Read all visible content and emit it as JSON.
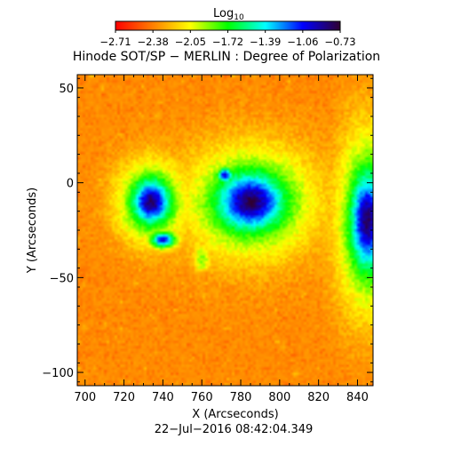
{
  "colorbar": {
    "label_main": "Log",
    "label_sub": "10",
    "ticks": [
      "−2.71",
      "−2.38",
      "−2.05",
      "−1.72",
      "−1.39",
      "−1.06",
      "−0.73"
    ],
    "range": [
      -2.71,
      -0.73
    ]
  },
  "chart_data": {
    "type": "heatmap",
    "title": "Hinode SOT/SP − MERLIN : Degree of Polarization",
    "xlabel": "X (Arcseconds)",
    "ylabel": "Y (Arcseconds)",
    "xlim": [
      696,
      848
    ],
    "ylim": [
      -107,
      57
    ],
    "xticks": [
      700,
      720,
      740,
      760,
      780,
      800,
      820,
      840
    ],
    "yticks": [
      -100,
      -50,
      0,
      50
    ],
    "value_unit": "log10 degree of polarization",
    "value_range": [
      -2.71,
      -0.73
    ],
    "colormap": [
      "#ff0000",
      "#ff7f00",
      "#ffff00",
      "#00ff00",
      "#00ffff",
      "#0000ff",
      "#300030"
    ],
    "features": [
      {
        "x": 734,
        "y": -10,
        "rx": 9,
        "ry": 11,
        "peak": -0.8
      },
      {
        "x": 740,
        "y": -30,
        "rx": 6,
        "ry": 4,
        "peak": -1.0
      },
      {
        "x": 785,
        "y": -10,
        "rx": 16,
        "ry": 14,
        "peak": -0.78
      },
      {
        "x": 772,
        "y": 4,
        "rx": 4,
        "ry": 4,
        "peak": -1.0
      },
      {
        "x": 845,
        "y": -20,
        "rx": 8,
        "ry": 24,
        "peak": -0.8
      },
      {
        "x": 760,
        "y": -40,
        "rx": 9,
        "ry": 14,
        "peak": -1.9
      }
    ],
    "timestamp": "22−Jul−2016 08:42:04.349"
  }
}
